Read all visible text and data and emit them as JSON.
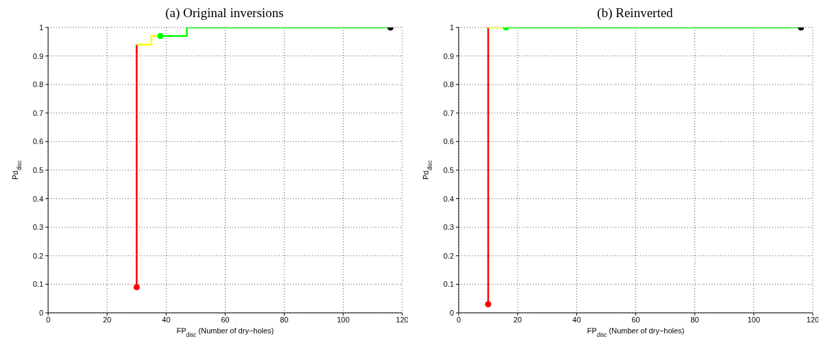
{
  "chart_data": [
    {
      "type": "step",
      "title": "(a) Original inversions",
      "xlabel": "FP$_{disc}$ (Number of dry−holes)",
      "ylabel": "Pd$_{disc}$",
      "xlim": [
        0,
        120
      ],
      "xticks": [
        0,
        20,
        40,
        60,
        80,
        100,
        120
      ],
      "ylim": [
        0,
        1
      ],
      "yticks": [
        0,
        0.1,
        0.2,
        0.3,
        0.4,
        0.5,
        0.6,
        0.7,
        0.8,
        0.9,
        1
      ],
      "grid": true,
      "line_style": "solid",
      "series": [
        {
          "type": "step",
          "color": "#ff0000",
          "x": [
            30,
            30
          ],
          "values": [
            0.09,
            0.94
          ]
        },
        {
          "type": "step",
          "color": "#ffff00",
          "x": [
            30,
            35,
            38
          ],
          "values": [
            0.94,
            0.97,
            0.97
          ]
        },
        {
          "type": "step",
          "color": "#00ff00",
          "x": [
            38,
            47,
            116
          ],
          "values": [
            0.97,
            1,
            1
          ]
        },
        {
          "type": "scatter",
          "color": "#ff0000",
          "x": [
            30
          ],
          "values": [
            0.09
          ]
        },
        {
          "type": "scatter",
          "color": "#00ff00",
          "x": [
            38
          ],
          "values": [
            0.97
          ]
        },
        {
          "type": "scatter",
          "color": "#000000",
          "x": [
            116
          ],
          "values": [
            1
          ]
        }
      ]
    },
    {
      "type": "step",
      "title": "(b) Reinverted",
      "xlabel": "FP$_{disc}$ (Number of dry−holes)",
      "ylabel": "Pd$_{disc}$",
      "xlim": [
        0,
        120
      ],
      "xticks": [
        0,
        20,
        40,
        60,
        80,
        100,
        120
      ],
      "ylim": [
        0,
        1
      ],
      "yticks": [
        0,
        0.1,
        0.2,
        0.3,
        0.4,
        0.5,
        0.6,
        0.7,
        0.8,
        0.9,
        1
      ],
      "grid": true,
      "line_style": "solid",
      "series": [
        {
          "type": "step",
          "color": "#ff0000",
          "x": [
            10,
            10
          ],
          "values": [
            0.03,
            1
          ]
        },
        {
          "type": "step",
          "color": "#ffff00",
          "x": [
            10,
            16
          ],
          "values": [
            1,
            1
          ]
        },
        {
          "type": "step",
          "color": "#00ff00",
          "x": [
            16,
            116
          ],
          "values": [
            1,
            1
          ]
        },
        {
          "type": "scatter",
          "color": "#ff0000",
          "x": [
            10
          ],
          "values": [
            0.03
          ]
        },
        {
          "type": "scatter",
          "color": "#00ff00",
          "x": [
            16
          ],
          "values": [
            1
          ]
        },
        {
          "type": "scatter",
          "color": "#000000",
          "x": [
            116
          ],
          "values": [
            1
          ]
        }
      ]
    }
  ]
}
